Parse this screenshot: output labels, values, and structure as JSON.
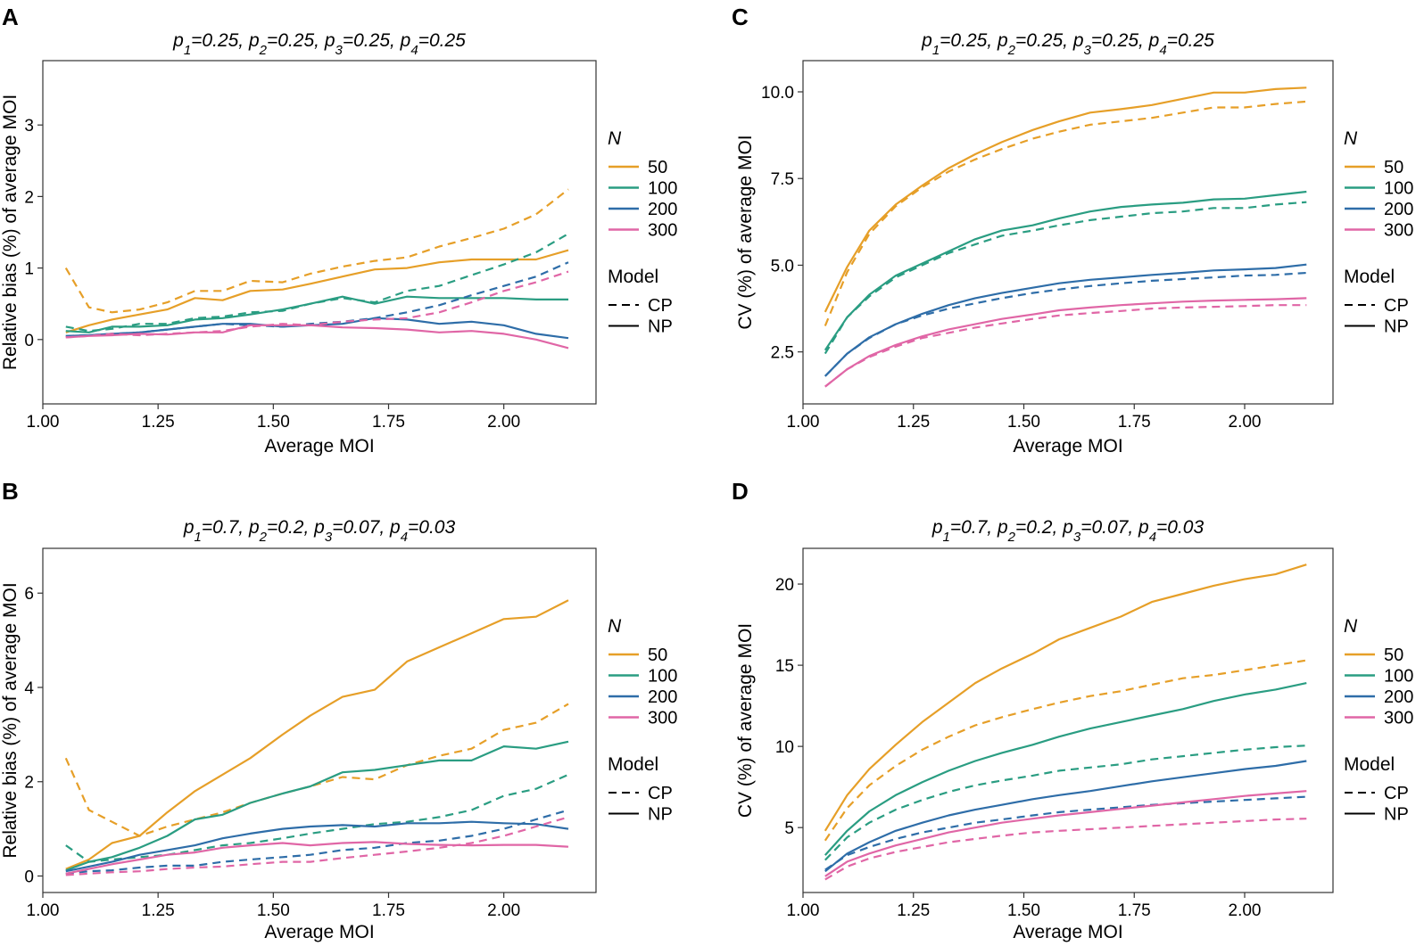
{
  "colors": {
    "50": "#E69F28",
    "100": "#2A9D82",
    "200": "#2E6DA8",
    "300": "#E066A6"
  },
  "legend": {
    "size_title": "N",
    "sizes": [
      "50",
      "100",
      "200",
      "300"
    ],
    "model_title": "Model",
    "models": [
      "CP",
      "NP"
    ]
  },
  "chart_data": [
    {
      "id": "A",
      "letter": "A",
      "type": "line",
      "title": "p1=0.25, p2=0.25, p3=0.25, p4=0.25",
      "title_parts": [
        [
          "p",
          "1",
          "=0.25, "
        ],
        [
          "p",
          "2",
          "=0.25, "
        ],
        [
          "p",
          "3",
          "=0.25, "
        ],
        [
          "p",
          "4",
          "=0.25"
        ]
      ],
      "xlabel": "Average MOI",
      "ylabel": "Relative bias (%) of average MOI",
      "xlim": [
        1.0,
        2.2
      ],
      "ylim": [
        -0.9,
        3.9
      ],
      "xticks": [
        1.0,
        1.25,
        1.5,
        1.75,
        2.0
      ],
      "xtick_labels": [
        "1.00",
        "1.25",
        "1.50",
        "1.75",
        "2.00"
      ],
      "yticks": [
        0,
        1,
        2,
        3
      ],
      "ytick_labels": [
        "0",
        "1",
        "2",
        "3"
      ],
      "x": [
        1.05,
        1.1,
        1.15,
        1.21,
        1.27,
        1.33,
        1.39,
        1.45,
        1.52,
        1.58,
        1.65,
        1.72,
        1.79,
        1.86,
        1.93,
        2.0,
        2.07,
        2.14
      ],
      "series": [
        {
          "name": "50",
          "model": "CP",
          "values": [
            1.0,
            0.45,
            0.38,
            0.42,
            0.52,
            0.68,
            0.68,
            0.82,
            0.8,
            0.92,
            1.02,
            1.1,
            1.15,
            1.3,
            1.42,
            1.55,
            1.75,
            2.1
          ]
        },
        {
          "name": "50",
          "model": "NP",
          "values": [
            0.1,
            0.2,
            0.28,
            0.35,
            0.42,
            0.58,
            0.55,
            0.68,
            0.7,
            0.78,
            0.88,
            0.98,
            1.0,
            1.08,
            1.12,
            1.12,
            1.12,
            1.25
          ]
        },
        {
          "name": "100",
          "model": "CP",
          "values": [
            0.18,
            0.12,
            0.15,
            0.22,
            0.22,
            0.3,
            0.32,
            0.38,
            0.4,
            0.5,
            0.58,
            0.52,
            0.68,
            0.75,
            0.9,
            1.05,
            1.22,
            1.48
          ]
        },
        {
          "name": "100",
          "model": "NP",
          "values": [
            0.12,
            0.1,
            0.18,
            0.18,
            0.2,
            0.28,
            0.3,
            0.35,
            0.42,
            0.5,
            0.6,
            0.5,
            0.6,
            0.58,
            0.58,
            0.58,
            0.56,
            0.56
          ]
        },
        {
          "name": "200",
          "model": "CP",
          "values": [
            0.05,
            0.06,
            0.08,
            0.1,
            0.14,
            0.18,
            0.22,
            0.2,
            0.18,
            0.22,
            0.25,
            0.3,
            0.38,
            0.48,
            0.62,
            0.75,
            0.88,
            1.08
          ]
        },
        {
          "name": "200",
          "model": "NP",
          "values": [
            0.05,
            0.06,
            0.08,
            0.1,
            0.14,
            0.18,
            0.22,
            0.22,
            0.18,
            0.2,
            0.22,
            0.3,
            0.28,
            0.22,
            0.25,
            0.2,
            0.08,
            0.02
          ]
        },
        {
          "name": "300",
          "model": "CP",
          "values": [
            0.03,
            0.05,
            0.08,
            0.06,
            0.08,
            0.1,
            0.12,
            0.18,
            0.22,
            0.2,
            0.25,
            0.28,
            0.3,
            0.38,
            0.52,
            0.68,
            0.8,
            0.95
          ]
        },
        {
          "name": "300",
          "model": "NP",
          "values": [
            0.03,
            0.05,
            0.06,
            0.08,
            0.07,
            0.1,
            0.1,
            0.2,
            0.2,
            0.2,
            0.17,
            0.16,
            0.14,
            0.1,
            0.12,
            0.08,
            0.0,
            -0.12
          ]
        }
      ]
    },
    {
      "id": "C",
      "letter": "C",
      "type": "line",
      "title": "p1=0.25, p2=0.25, p3=0.25, p4=0.25",
      "title_parts": [
        [
          "p",
          "1",
          "=0.25, "
        ],
        [
          "p",
          "2",
          "=0.25, "
        ],
        [
          "p",
          "3",
          "=0.25, "
        ],
        [
          "p",
          "4",
          "=0.25"
        ]
      ],
      "xlabel": "Average MOI",
      "ylabel": "CV (%) of average MOI",
      "xlim": [
        1.0,
        2.2
      ],
      "ylim": [
        1.0,
        10.9
      ],
      "xticks": [
        1.0,
        1.25,
        1.5,
        1.75,
        2.0
      ],
      "xtick_labels": [
        "1.00",
        "1.25",
        "1.50",
        "1.75",
        "2.00"
      ],
      "yticks": [
        2.5,
        5.0,
        7.5,
        10.0
      ],
      "ytick_labels": [
        "2.5",
        "5.0",
        "7.5",
        "10.0"
      ],
      "x": [
        1.05,
        1.1,
        1.15,
        1.21,
        1.27,
        1.33,
        1.39,
        1.45,
        1.52,
        1.58,
        1.65,
        1.72,
        1.79,
        1.86,
        1.93,
        2.0,
        2.07,
        2.14
      ],
      "series": [
        {
          "name": "50",
          "model": "CP",
          "values": [
            3.25,
            4.8,
            5.9,
            6.7,
            7.25,
            7.7,
            8.05,
            8.35,
            8.65,
            8.85,
            9.05,
            9.15,
            9.25,
            9.4,
            9.55,
            9.55,
            9.65,
            9.72
          ]
        },
        {
          "name": "50",
          "model": "NP",
          "values": [
            3.65,
            4.95,
            6.0,
            6.75,
            7.3,
            7.8,
            8.2,
            8.55,
            8.9,
            9.15,
            9.4,
            9.5,
            9.62,
            9.8,
            9.98,
            9.98,
            10.08,
            10.12
          ]
        },
        {
          "name": "100",
          "model": "CP",
          "values": [
            2.45,
            3.5,
            4.1,
            4.65,
            5.0,
            5.35,
            5.6,
            5.85,
            6.0,
            6.15,
            6.3,
            6.4,
            6.5,
            6.55,
            6.65,
            6.65,
            6.75,
            6.82
          ]
        },
        {
          "name": "100",
          "model": "NP",
          "values": [
            2.55,
            3.5,
            4.15,
            4.7,
            5.05,
            5.4,
            5.75,
            6.0,
            6.15,
            6.35,
            6.55,
            6.68,
            6.75,
            6.8,
            6.9,
            6.92,
            7.02,
            7.12
          ]
        },
        {
          "name": "200",
          "model": "CP",
          "values": [
            1.8,
            2.45,
            2.9,
            3.3,
            3.55,
            3.75,
            3.9,
            4.05,
            4.2,
            4.3,
            4.4,
            4.48,
            4.55,
            4.6,
            4.65,
            4.7,
            4.72,
            4.78
          ]
        },
        {
          "name": "200",
          "model": "NP",
          "values": [
            1.8,
            2.45,
            2.92,
            3.3,
            3.6,
            3.85,
            4.05,
            4.2,
            4.35,
            4.48,
            4.58,
            4.65,
            4.72,
            4.78,
            4.85,
            4.88,
            4.92,
            5.02
          ]
        },
        {
          "name": "300",
          "model": "CP",
          "values": [
            1.5,
            2.0,
            2.35,
            2.65,
            2.9,
            3.05,
            3.2,
            3.32,
            3.45,
            3.55,
            3.62,
            3.68,
            3.75,
            3.78,
            3.8,
            3.82,
            3.85,
            3.85
          ]
        },
        {
          "name": "300",
          "model": "NP",
          "values": [
            1.5,
            2.0,
            2.38,
            2.7,
            2.95,
            3.15,
            3.3,
            3.45,
            3.58,
            3.7,
            3.78,
            3.85,
            3.9,
            3.95,
            3.98,
            4.0,
            4.02,
            4.05
          ]
        }
      ]
    },
    {
      "id": "B",
      "letter": "B",
      "type": "line",
      "title": "p1=0.7, p2=0.2, p3=0.07, p4=0.03",
      "title_parts": [
        [
          "p",
          "1",
          "=0.7, "
        ],
        [
          "p",
          "2",
          "=0.2, "
        ],
        [
          "p",
          "3",
          "=0.07, "
        ],
        [
          "p",
          "4",
          "=0.03"
        ]
      ],
      "xlabel": "Average MOI",
      "ylabel": "Relative bias (%) of average MOI",
      "xlim": [
        1.0,
        2.2
      ],
      "ylim": [
        -0.35,
        6.95
      ],
      "xticks": [
        1.0,
        1.25,
        1.5,
        1.75,
        2.0
      ],
      "xtick_labels": [
        "1.00",
        "1.25",
        "1.50",
        "1.75",
        "2.00"
      ],
      "yticks": [
        0,
        2,
        4,
        6
      ],
      "ytick_labels": [
        "0",
        "2",
        "4",
        "6"
      ],
      "x": [
        1.05,
        1.1,
        1.15,
        1.21,
        1.27,
        1.33,
        1.39,
        1.45,
        1.52,
        1.58,
        1.65,
        1.72,
        1.79,
        1.86,
        1.93,
        2.0,
        2.07,
        2.14
      ],
      "series": [
        {
          "name": "50",
          "model": "CP",
          "values": [
            2.5,
            1.4,
            1.15,
            0.85,
            1.05,
            1.2,
            1.35,
            1.55,
            1.75,
            1.9,
            2.1,
            2.05,
            2.35,
            2.55,
            2.7,
            3.1,
            3.25,
            3.65
          ]
        },
        {
          "name": "50",
          "model": "NP",
          "values": [
            0.15,
            0.35,
            0.7,
            0.85,
            1.35,
            1.8,
            2.15,
            2.5,
            3.0,
            3.4,
            3.8,
            3.95,
            4.55,
            4.85,
            5.15,
            5.45,
            5.5,
            5.85
          ]
        },
        {
          "name": "100",
          "model": "CP",
          "values": [
            0.65,
            0.3,
            0.35,
            0.4,
            0.45,
            0.55,
            0.65,
            0.7,
            0.8,
            0.9,
            1.0,
            1.1,
            1.15,
            1.25,
            1.4,
            1.7,
            1.85,
            2.15
          ]
        },
        {
          "name": "100",
          "model": "NP",
          "values": [
            0.12,
            0.3,
            0.4,
            0.6,
            0.85,
            1.2,
            1.3,
            1.55,
            1.75,
            1.9,
            2.2,
            2.25,
            2.35,
            2.45,
            2.45,
            2.75,
            2.7,
            2.85
          ]
        },
        {
          "name": "200",
          "model": "CP",
          "values": [
            0.05,
            0.1,
            0.12,
            0.18,
            0.22,
            0.22,
            0.3,
            0.35,
            0.4,
            0.45,
            0.55,
            0.6,
            0.7,
            0.75,
            0.85,
            1.0,
            1.2,
            1.4
          ]
        },
        {
          "name": "200",
          "model": "NP",
          "values": [
            0.1,
            0.2,
            0.3,
            0.45,
            0.55,
            0.65,
            0.8,
            0.9,
            1.0,
            1.05,
            1.08,
            1.05,
            1.12,
            1.12,
            1.15,
            1.12,
            1.1,
            1.0
          ]
        },
        {
          "name": "300",
          "model": "CP",
          "values": [
            0.02,
            0.05,
            0.08,
            0.1,
            0.15,
            0.18,
            0.2,
            0.25,
            0.3,
            0.3,
            0.38,
            0.45,
            0.52,
            0.6,
            0.7,
            0.85,
            1.05,
            1.25
          ]
        },
        {
          "name": "300",
          "model": "NP",
          "values": [
            0.05,
            0.15,
            0.25,
            0.35,
            0.45,
            0.5,
            0.6,
            0.65,
            0.7,
            0.65,
            0.7,
            0.72,
            0.68,
            0.66,
            0.65,
            0.66,
            0.66,
            0.62
          ]
        }
      ]
    },
    {
      "id": "D",
      "letter": "D",
      "type": "line",
      "title": "p1=0.7, p2=0.2, p3=0.07, p4=0.03",
      "title_parts": [
        [
          "p",
          "1",
          "=0.7, "
        ],
        [
          "p",
          "2",
          "=0.2, "
        ],
        [
          "p",
          "3",
          "=0.07, "
        ],
        [
          "p",
          "4",
          "=0.03"
        ]
      ],
      "xlabel": "Average MOI",
      "ylabel": "CV (%) of average MOI",
      "xlim": [
        1.0,
        2.2
      ],
      "ylim": [
        1.0,
        22.2
      ],
      "xticks": [
        1.0,
        1.25,
        1.5,
        1.75,
        2.0
      ],
      "xtick_labels": [
        "1.00",
        "1.25",
        "1.50",
        "1.75",
        "2.00"
      ],
      "yticks": [
        5,
        10,
        15,
        20
      ],
      "ytick_labels": [
        "5",
        "10",
        "15",
        "20"
      ],
      "x": [
        1.05,
        1.1,
        1.15,
        1.21,
        1.27,
        1.33,
        1.39,
        1.45,
        1.52,
        1.58,
        1.65,
        1.72,
        1.79,
        1.86,
        1.93,
        2.0,
        2.07,
        2.14
      ],
      "series": [
        {
          "name": "50",
          "model": "CP",
          "values": [
            4.2,
            6.2,
            7.6,
            8.8,
            9.8,
            10.6,
            11.3,
            11.8,
            12.3,
            12.7,
            13.1,
            13.4,
            13.8,
            14.2,
            14.4,
            14.7,
            15.0,
            15.3
          ]
        },
        {
          "name": "50",
          "model": "NP",
          "values": [
            4.8,
            7.0,
            8.6,
            10.1,
            11.5,
            12.7,
            13.9,
            14.8,
            15.7,
            16.6,
            17.3,
            18.0,
            18.9,
            19.4,
            19.9,
            20.3,
            20.6,
            21.2
          ]
        },
        {
          "name": "100",
          "model": "CP",
          "values": [
            3.0,
            4.4,
            5.3,
            6.1,
            6.7,
            7.2,
            7.6,
            7.9,
            8.2,
            8.5,
            8.7,
            8.9,
            9.2,
            9.4,
            9.6,
            9.8,
            9.95,
            10.05
          ]
        },
        {
          "name": "100",
          "model": "NP",
          "values": [
            3.3,
            4.8,
            6.0,
            7.0,
            7.8,
            8.5,
            9.1,
            9.6,
            10.1,
            10.6,
            11.1,
            11.5,
            11.9,
            12.3,
            12.8,
            13.2,
            13.5,
            13.9
          ]
        },
        {
          "name": "200",
          "model": "CP",
          "values": [
            2.4,
            3.3,
            3.8,
            4.3,
            4.7,
            5.0,
            5.3,
            5.5,
            5.75,
            5.95,
            6.1,
            6.25,
            6.4,
            6.5,
            6.6,
            6.7,
            6.8,
            6.9
          ]
        },
        {
          "name": "200",
          "model": "NP",
          "values": [
            2.3,
            3.4,
            4.1,
            4.8,
            5.3,
            5.75,
            6.1,
            6.4,
            6.75,
            7.0,
            7.25,
            7.55,
            7.85,
            8.1,
            8.35,
            8.6,
            8.8,
            9.1
          ]
        },
        {
          "name": "300",
          "model": "CP",
          "values": [
            1.8,
            2.6,
            3.1,
            3.5,
            3.8,
            4.1,
            4.3,
            4.5,
            4.7,
            4.8,
            4.9,
            5.0,
            5.1,
            5.2,
            5.3,
            5.4,
            5.5,
            5.55
          ]
        },
        {
          "name": "300",
          "model": "NP",
          "values": [
            2.0,
            2.9,
            3.4,
            3.9,
            4.3,
            4.7,
            5.0,
            5.3,
            5.55,
            5.75,
            5.95,
            6.15,
            6.35,
            6.55,
            6.75,
            6.95,
            7.1,
            7.25
          ]
        }
      ]
    }
  ]
}
